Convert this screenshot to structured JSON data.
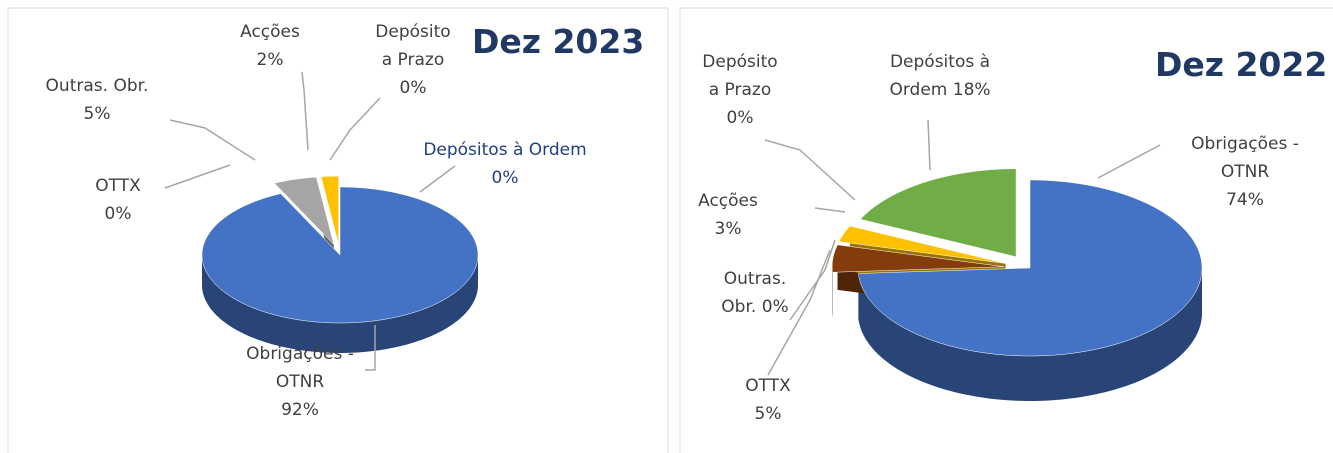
{
  "chart_data": [
    {
      "type": "pie",
      "title": "Dez 2023",
      "categories": [
        "Obrigações - OTNR",
        "OTTX",
        "Outras. Obr.",
        "Acções",
        "Depósito a Prazo",
        "Depósitos à Ordem"
      ],
      "values": [
        92,
        0,
        5,
        2,
        0,
        0
      ],
      "value_labels": [
        "92%",
        "0%",
        "5%",
        "2%",
        "0%",
        "0%"
      ],
      "colors": [
        "#4472c4",
        "#843c0c",
        "#a5a5a5",
        "#ffc000",
        "#5b9bd5",
        "#70ad47"
      ]
    },
    {
      "type": "pie",
      "title": "Dez 2022",
      "categories": [
        "Obrigações - OTNR",
        "OTTX",
        "Outras. Obr.",
        "Acções",
        "Depósito a Prazo",
        "Depósitos à Ordem"
      ],
      "values": [
        74,
        5,
        0,
        3,
        0,
        18
      ],
      "value_labels": [
        "74%",
        "5%",
        "0%",
        "3%",
        "0%",
        "18%"
      ],
      "colors": [
        "#4472c4",
        "#843c0c",
        "#ed7d31",
        "#ffc000",
        "#5b9bd5",
        "#70ad47"
      ]
    }
  ]
}
